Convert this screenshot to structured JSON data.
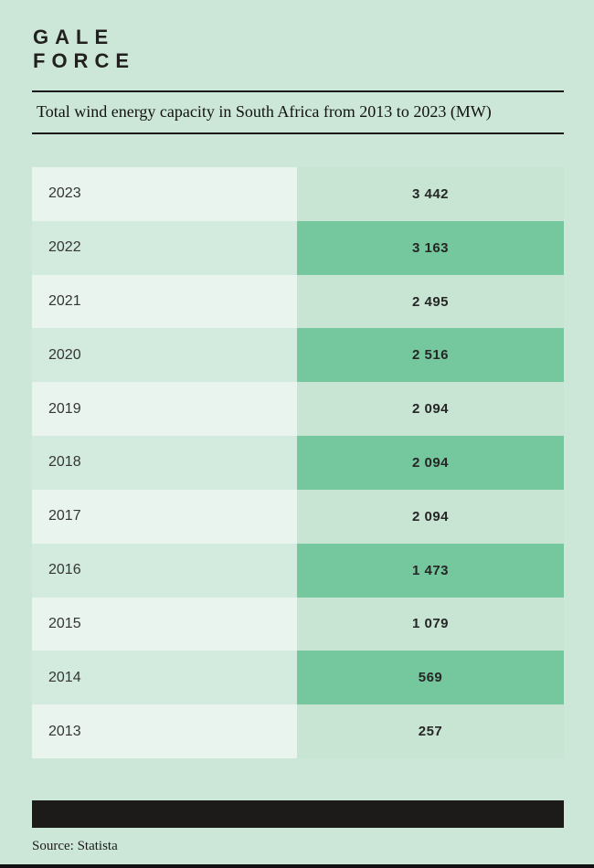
{
  "page": {
    "background_color": "#cce7d8",
    "accent_green": "#75c89d",
    "light_row_color": "#c8e5d4",
    "footer_bar_color": "#1d1b19"
  },
  "brand": {
    "line1": "GALE",
    "line2": "FORCE"
  },
  "header": {
    "title": "Total wind energy capacity in South Africa from 2013 to 2023 (MW)"
  },
  "source": {
    "label": "Source: Statista"
  },
  "rows": [
    {
      "year": "2023",
      "value": "3 442"
    },
    {
      "year": "2022",
      "value": "3 163"
    },
    {
      "year": "2021",
      "value": "2 495"
    },
    {
      "year": "2020",
      "value": "2 516"
    },
    {
      "year": "2019",
      "value": "2 094"
    },
    {
      "year": "2018",
      "value": "2 094"
    },
    {
      "year": "2017",
      "value": "2 094"
    },
    {
      "year": "2016",
      "value": "1 473"
    },
    {
      "year": "2015",
      "value": "1 079"
    },
    {
      "year": "2014",
      "value": "569"
    },
    {
      "year": "2013",
      "value": "257"
    }
  ],
  "chart_data": {
    "type": "table",
    "title": "Total wind energy capacity in South Africa from 2013 to 2023 (MW)",
    "unit": "MW",
    "categories": [
      "2023",
      "2022",
      "2021",
      "2020",
      "2019",
      "2018",
      "2017",
      "2016",
      "2015",
      "2014",
      "2013"
    ],
    "values": [
      3442,
      3163,
      2495,
      2516,
      2094,
      2094,
      2094,
      1473,
      1079,
      569,
      257
    ],
    "source": "Statista",
    "layout": "two-column list, years left-aligned, values centered, alternating row shading"
  }
}
